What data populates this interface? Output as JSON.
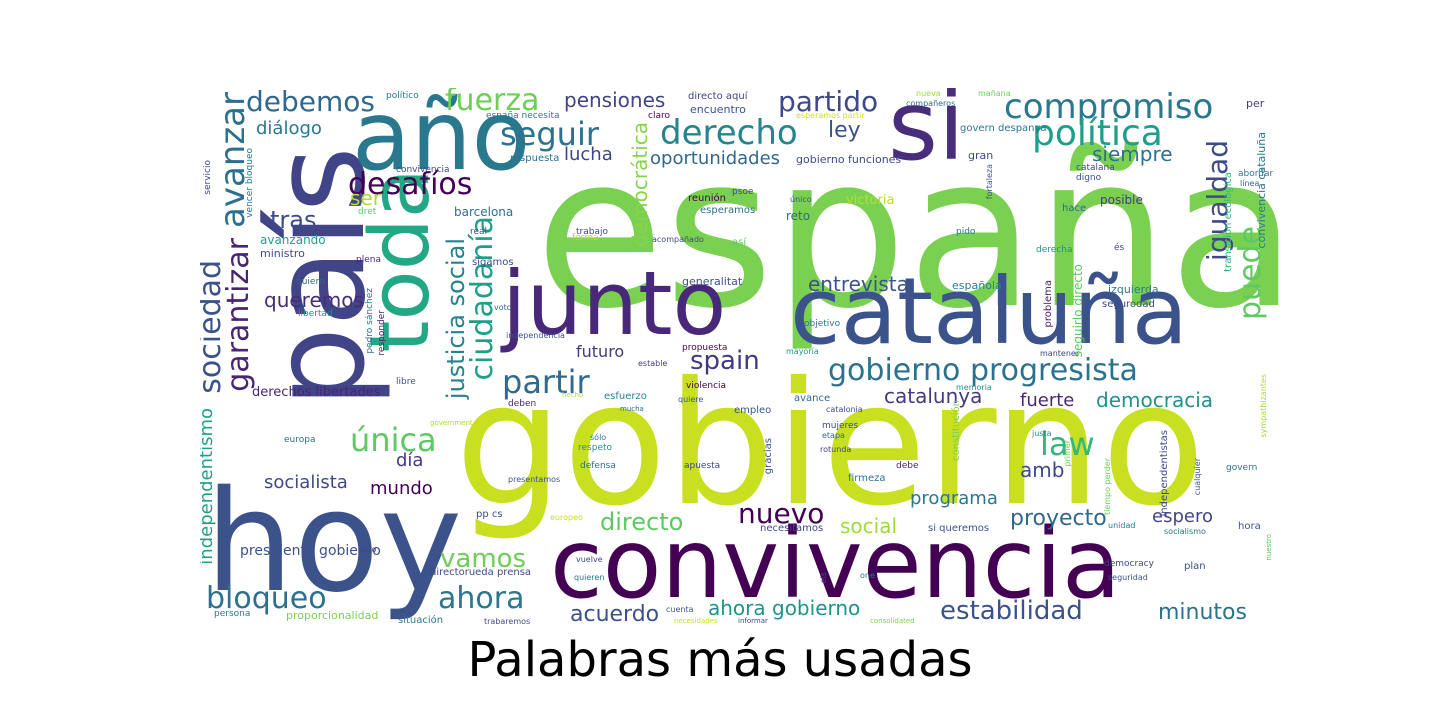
{
  "caption": "Palabras más usadas",
  "words": [
    {
      "text": "españa",
      "color": "#7ad151"
    },
    {
      "text": "gobierno",
      "color": "#c8e020"
    },
    {
      "text": "convivencia",
      "color": "#440154"
    },
    {
      "text": "país",
      "color": "#414487"
    },
    {
      "text": "hoy",
      "color": "#3b528b"
    },
    {
      "text": "año",
      "color": "#2a788e"
    },
    {
      "text": "toda",
      "color": "#22a884"
    },
    {
      "text": "junto",
      "color": "#482878"
    },
    {
      "text": "cataluña",
      "color": "#3b528b"
    },
    {
      "text": "si",
      "color": "#472d7b"
    },
    {
      "text": "compromiso",
      "color": "#2a788e"
    },
    {
      "text": "política",
      "color": "#1f9e89"
    },
    {
      "text": "derecho",
      "color": "#25858e"
    },
    {
      "text": "seguir",
      "color": "#2c728e"
    },
    {
      "text": "fuerza",
      "color": "#6ece58"
    },
    {
      "text": "debemos",
      "color": "#31688e"
    },
    {
      "text": "partido",
      "color": "#3e4989"
    },
    {
      "text": "pensiones",
      "color": "#414487"
    },
    {
      "text": "desafíos",
      "color": "#440154"
    },
    {
      "text": "avanzar",
      "color": "#2d708e"
    },
    {
      "text": "garantizar",
      "color": "#482475"
    },
    {
      "text": "sociedad",
      "color": "#3b528b"
    },
    {
      "text": "gobierno progresista",
      "color": "#2c728e"
    },
    {
      "text": "partir",
      "color": "#31688e"
    },
    {
      "text": "spain",
      "color": "#443983"
    },
    {
      "text": "igualdad",
      "color": "#3e4989"
    },
    {
      "text": "puede",
      "color": "#5ec962"
    },
    {
      "text": "ciudadanía",
      "color": "#1f9e89"
    },
    {
      "text": "justicia social",
      "color": "#26828e"
    },
    {
      "text": "democrática",
      "color": "#86d549"
    },
    {
      "text": "oportunidades",
      "color": "#31688e"
    },
    {
      "text": "lucha",
      "color": "#414487"
    },
    {
      "text": "ley",
      "color": "#3b528b"
    },
    {
      "text": "siempre",
      "color": "#2c728e"
    },
    {
      "text": "diálogo",
      "color": "#2a788e"
    },
    {
      "text": "tras",
      "color": "#3e4989"
    },
    {
      "text": "ser",
      "color": "#addc30"
    },
    {
      "text": "queremos",
      "color": "#472c7a"
    },
    {
      "text": "entrevista",
      "color": "#3b528b"
    },
    {
      "text": "democracia",
      "color": "#21918c"
    },
    {
      "text": "catalunya",
      "color": "#443983"
    },
    {
      "text": "fuerte",
      "color": "#482878"
    },
    {
      "text": "única",
      "color": "#5ec962"
    },
    {
      "text": "día",
      "color": "#443983"
    },
    {
      "text": "socialista",
      "color": "#3e4989"
    },
    {
      "text": "mundo",
      "color": "#440154"
    },
    {
      "text": "amb",
      "color": "#3e4989"
    },
    {
      "text": "law",
      "color": "#35b779"
    },
    {
      "text": "directo",
      "color": "#5ec962"
    },
    {
      "text": "nuevo",
      "color": "#440154"
    },
    {
      "text": "proyecto",
      "color": "#31688e"
    },
    {
      "text": "programa",
      "color": "#2a788e"
    },
    {
      "text": "espero",
      "color": "#414487"
    },
    {
      "text": "social",
      "color": "#a0da39"
    },
    {
      "text": "vamos",
      "color": "#6ece58"
    },
    {
      "text": "ahora",
      "color": "#2a788e"
    },
    {
      "text": "bloqueo",
      "color": "#2c728e"
    },
    {
      "text": "acuerdo",
      "color": "#3b528b"
    },
    {
      "text": "ahora gobierno",
      "color": "#21918c"
    },
    {
      "text": "estabilidad",
      "color": "#3b528b"
    },
    {
      "text": "minutos",
      "color": "#2c728e"
    },
    {
      "text": "futuro",
      "color": "#443983"
    },
    {
      "text": "independentismo",
      "color": "#1fa187"
    },
    {
      "text": "derechos libertades",
      "color": "#482475"
    },
    {
      "text": "presidente gobierno",
      "color": "#3b528b"
    },
    {
      "text": "avanzando",
      "color": "#1f9e89"
    },
    {
      "text": "ministro",
      "color": "#3e4989"
    },
    {
      "text": "barcelona",
      "color": "#2c728e"
    },
    {
      "text": "reunión",
      "color": "#440154"
    },
    {
      "text": "esperamos",
      "color": "#2c728e"
    },
    {
      "text": "reto",
      "color": "#31688e"
    },
    {
      "text": "victoria",
      "color": "#b5de2b"
    },
    {
      "text": "posible",
      "color": "#443983"
    },
    {
      "text": "hace",
      "color": "#31688e"
    },
    {
      "text": "generalitat",
      "color": "#3b528b"
    },
    {
      "text": "española",
      "color": "#26828e"
    },
    {
      "text": "izquierda",
      "color": "#2a788e"
    },
    {
      "text": "objetivo",
      "color": "#2a788e"
    },
    {
      "text": "problema",
      "color": "#481b6d"
    },
    {
      "text": "seguirlo directo",
      "color": "#5ec962"
    },
    {
      "text": "segurodad",
      "color": "#3e4989"
    },
    {
      "text": "mantener",
      "color": "#414487"
    },
    {
      "text": "convivencia cataluña",
      "color": "#2a788e"
    },
    {
      "text": "transición ecológica",
      "color": "#35b779"
    },
    {
      "text": "abordar",
      "color": "#2a788e"
    },
    {
      "text": "línea",
      "color": "#31688e"
    },
    {
      "text": "per",
      "color": "#443983"
    },
    {
      "text": "gran",
      "color": "#3e4989"
    },
    {
      "text": "govern despanya",
      "color": "#2a788e"
    },
    {
      "text": "catalana",
      "color": "#414487"
    },
    {
      "text": "digno",
      "color": "#3b528b"
    },
    {
      "text": "gobierno funciones",
      "color": "#3e4989"
    },
    {
      "text": "encuentro",
      "color": "#3b528b"
    },
    {
      "text": "directo aquí",
      "color": "#414487"
    },
    {
      "text": "españa necesita",
      "color": "#2a788e"
    },
    {
      "text": "respuesta",
      "color": "#2c728e"
    },
    {
      "text": "claro",
      "color": "#440154"
    },
    {
      "text": "esperamos partir",
      "color": "#d2e21b"
    },
    {
      "text": "nueva",
      "color": "#a0da39"
    },
    {
      "text": "compañeros",
      "color": "#31688e"
    },
    {
      "text": "mañana",
      "color": "#6ece58"
    },
    {
      "text": "servicio",
      "color": "#3e4989"
    },
    {
      "text": "vencer bloqueo",
      "color": "#2a788e"
    },
    {
      "text": "convivencia",
      "color": "#3e4989"
    },
    {
      "text": "dret",
      "color": "#5ec962"
    },
    {
      "text": "real",
      "color": "#3b528b"
    },
    {
      "text": "plena",
      "color": "#482878"
    },
    {
      "text": "sigamos",
      "color": "#3e4989"
    },
    {
      "text": "quiero",
      "color": "#31688e"
    },
    {
      "text": "libertad",
      "color": "#21918c"
    },
    {
      "text": "pedro sánchez",
      "color": "#2c728e"
    },
    {
      "text": "responder",
      "color": "#482475"
    },
    {
      "text": "voto",
      "color": "#31688e"
    },
    {
      "text": "independencia",
      "color": "#3b528b"
    },
    {
      "text": "propuesta",
      "color": "#440154"
    },
    {
      "text": "estable",
      "color": "#443983"
    },
    {
      "text": "violencia",
      "color": "#440154"
    },
    {
      "text": "mayoría",
      "color": "#21918c"
    },
    {
      "text": "memoria",
      "color": "#21918c"
    },
    {
      "text": "libre",
      "color": "#3b528b"
    },
    {
      "text": "deben",
      "color": "#482878"
    },
    {
      "text": "esfuerzo",
      "color": "#25858e"
    },
    {
      "text": "empleo",
      "color": "#3b528b"
    },
    {
      "text": "avance",
      "color": "#31688e"
    },
    {
      "text": "catalonia",
      "color": "#3e4989"
    },
    {
      "text": "constitución",
      "color": "#7ad151"
    },
    {
      "text": "mujeres",
      "color": "#3e4989"
    },
    {
      "text": "etapa",
      "color": "#31688e"
    },
    {
      "text": "justa",
      "color": "#21918c"
    },
    {
      "text": "primer",
      "color": "#6ece58"
    },
    {
      "text": "europa",
      "color": "#2c728e"
    },
    {
      "text": "government",
      "color": "#addc30"
    },
    {
      "text": "sólo",
      "color": "#2a788e"
    },
    {
      "text": "respeto",
      "color": "#21918c"
    },
    {
      "text": "defensa",
      "color": "#2c728e"
    },
    {
      "text": "apuesta",
      "color": "#3e4989"
    },
    {
      "text": "gracias",
      "color": "#3b528b"
    },
    {
      "text": "rotunda",
      "color": "#414487"
    },
    {
      "text": "debe",
      "color": "#482475"
    },
    {
      "text": "firmeza",
      "color": "#2c728e"
    },
    {
      "text": "govern",
      "color": "#2c728e"
    },
    {
      "text": "independentistas",
      "color": "#3e4989"
    },
    {
      "text": "cualquier",
      "color": "#3b528b"
    },
    {
      "text": "tiempo perder",
      "color": "#6ece58"
    },
    {
      "text": "necesitamos",
      "color": "#3e4989"
    },
    {
      "text": "si queremos",
      "color": "#3b528b"
    },
    {
      "text": "unidad",
      "color": "#2a788e"
    },
    {
      "text": "socialismo",
      "color": "#2c728e"
    },
    {
      "text": "hora",
      "color": "#3b528b"
    },
    {
      "text": "pp cs",
      "color": "#3e4989"
    },
    {
      "text": "europeo",
      "color": "#c8e020"
    },
    {
      "text": "presentamos",
      "color": "#3b528b"
    },
    {
      "text": "vuelve",
      "color": "#3e4989"
    },
    {
      "text": "quieren",
      "color": "#2c728e"
    },
    {
      "text": "directoruedа prensa",
      "color": "#3e4989"
    },
    {
      "text": "sido",
      "color": "#414487"
    },
    {
      "text": "democracy",
      "color": "#3e4989"
    },
    {
      "text": "plan",
      "color": "#3b528b"
    },
    {
      "text": "persona",
      "color": "#2a788e"
    },
    {
      "text": "proporcionalidad",
      "color": "#7ad151"
    },
    {
      "text": "situación",
      "color": "#2a788e"
    },
    {
      "text": "trabaremos",
      "color": "#3e4989"
    },
    {
      "text": "cuenta",
      "color": "#3b528b"
    },
    {
      "text": "necesidades",
      "color": "#c8e020"
    },
    {
      "text": "informar",
      "color": "#3e4989"
    },
    {
      "text": "consolidated",
      "color": "#7ad151"
    },
    {
      "text": "seguridad",
      "color": "#3b528b"
    },
    {
      "text": "político",
      "color": "#2a788e"
    },
    {
      "text": "trabajo",
      "color": "#3e4989"
    },
    {
      "text": "forma",
      "color": "#b5de2b"
    },
    {
      "text": "acompañado",
      "color": "#3e4989"
    },
    {
      "text": "así",
      "color": "#5ec962"
    },
    {
      "text": "único",
      "color": "#3b528b"
    },
    {
      "text": "psoe",
      "color": "#3e4989"
    },
    {
      "text": "fortaleza",
      "color": "#3b528b"
    },
    {
      "text": "pido",
      "color": "#2c728e"
    },
    {
      "text": "derecha",
      "color": "#21918c"
    },
    {
      "text": "és",
      "color": "#3e4989"
    },
    {
      "text": "hecho",
      "color": "#addc30"
    },
    {
      "text": "mucha",
      "color": "#2c728e"
    },
    {
      "text": "quiere",
      "color": "#3b528b"
    },
    {
      "text": "sympathizantes",
      "color": "#addc30"
    },
    {
      "text": "els",
      "color": "#3e4989"
    },
    {
      "text": "one",
      "color": "#2c728e"
    },
    {
      "text": "nuestro",
      "color": "#5ec962"
    }
  ]
}
